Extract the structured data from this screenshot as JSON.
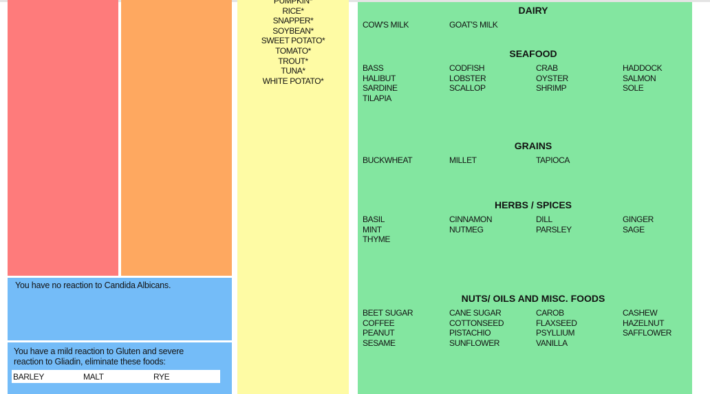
{
  "candida": "You have no reaction to Candida Albicans.",
  "gluten": {
    "text": "You have a mild reaction to Gluten and severe reaction to Gliadin, eliminate these foods:",
    "items": [
      "BARLEY",
      "MALT",
      "RYE"
    ]
  },
  "yellow_list": [
    "PUMPKIN*",
    "RICE*",
    "SNAPPER*",
    "SOYBEAN*",
    "SWEET POTATO*",
    "TOMATO*",
    "TROUT*",
    "TUNA*",
    "WHITE POTATO*"
  ],
  "sections": [
    {
      "heading": "DAIRY",
      "items": [
        "COW'S MILK",
        "GOAT'S MILK"
      ]
    },
    {
      "heading": "SEAFOOD",
      "items": [
        "BASS",
        "CODFISH",
        "CRAB",
        "HADDOCK",
        "HALIBUT",
        "LOBSTER",
        "OYSTER",
        "SALMON",
        "SARDINE",
        "SCALLOP",
        "SHRIMP",
        "SOLE",
        "TILAPIA"
      ]
    },
    {
      "heading": "GRAINS",
      "items": [
        "BUCKWHEAT",
        "MILLET",
        "TAPIOCA"
      ]
    },
    {
      "heading": "HERBS / SPICES",
      "items": [
        "BASIL",
        "CINNAMON",
        "DILL",
        "GINGER",
        "MINT",
        "NUTMEG",
        "PARSLEY",
        "SAGE",
        "THYME"
      ]
    },
    {
      "heading": "NUTS/ OILS AND MISC. FOODS",
      "items": [
        "BEET SUGAR",
        "CANE SUGAR",
        "CAROB",
        "CASHEW",
        "COFFEE",
        "COTTONSEED",
        "FLAXSEED",
        "HAZELNUT",
        "PEANUT",
        "PISTACHIO",
        "PSYLLIUM",
        "SAFFLOWER",
        "SESAME",
        "SUNFLOWER",
        "VANILLA"
      ]
    }
  ]
}
